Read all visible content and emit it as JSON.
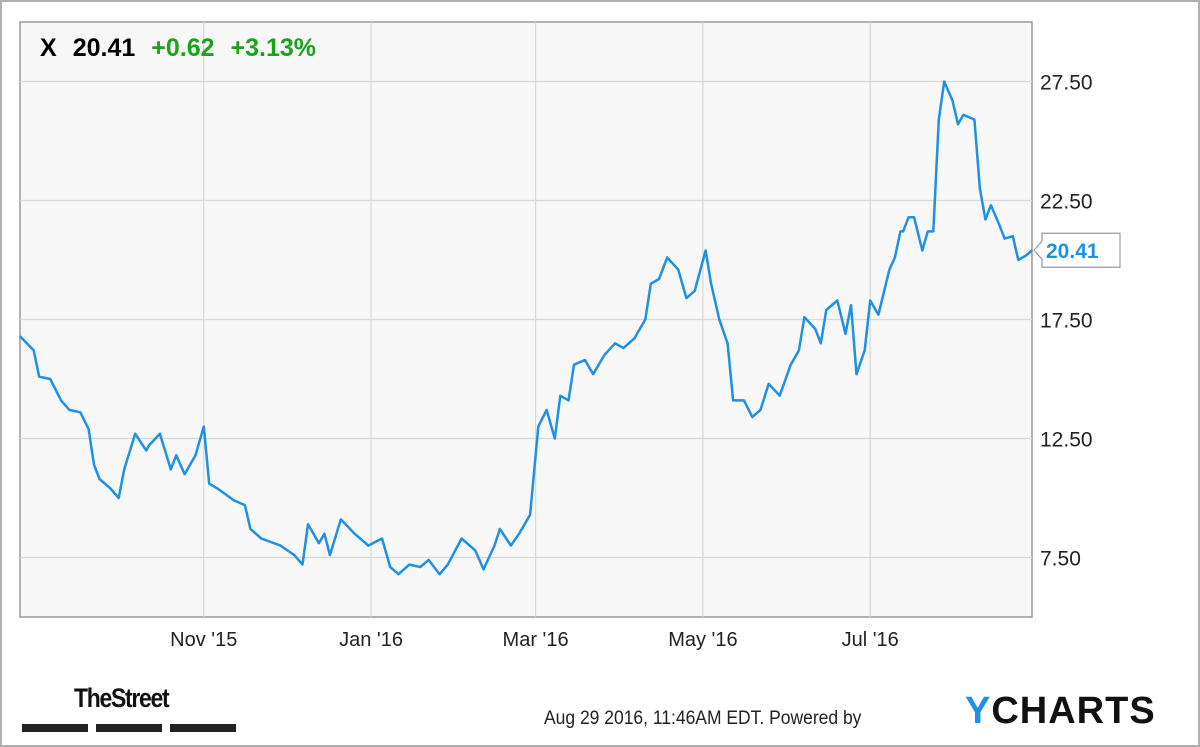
{
  "header": {
    "ticker": "X",
    "price": "20.41",
    "change": "+0.62",
    "change_pct": "+3.13%"
  },
  "footer": {
    "timestamp": "Aug 29 2016, 11:46AM EDT. Powered by",
    "brand": "YCHARTS",
    "brand_y": "Y",
    "brand_rest": "CHARTS",
    "publisher": "TheStreet"
  },
  "colors": {
    "line": "#1e90e6",
    "positive": "#1aa31a",
    "plot_bg": "#f7f7f7",
    "grid": "#d8d8d8"
  },
  "chart_data": {
    "type": "line",
    "title": "",
    "xlabel": "",
    "ylabel": "",
    "ylim": [
      5,
      30
    ],
    "xlim": [
      "2015-08-26",
      "2016-08-29"
    ],
    "grid": true,
    "y_axis_side": "right",
    "yticks": [
      "7.50",
      "12.50",
      "17.50",
      "22.50",
      "27.50"
    ],
    "xticks": [
      {
        "date": "2015-11-01",
        "label": "Nov '15"
      },
      {
        "date": "2016-01-01",
        "label": "Jan '16"
      },
      {
        "date": "2016-03-01",
        "label": "Mar '16"
      },
      {
        "date": "2016-05-01",
        "label": "May '16"
      },
      {
        "date": "2016-07-01",
        "label": "Jul '16"
      }
    ],
    "last_value_label": "20.41",
    "series": [
      {
        "x": [
          "2015-08-26",
          "2015-08-31",
          "2015-09-02",
          "2015-09-06",
          "2015-09-10",
          "2015-09-13",
          "2015-09-17",
          "2015-09-20",
          "2015-09-22",
          "2015-09-24",
          "2015-09-28",
          "2015-10-01",
          "2015-10-03",
          "2015-10-07",
          "2015-10-11",
          "2015-10-12",
          "2015-10-16",
          "2015-10-20",
          "2015-10-22",
          "2015-10-25",
          "2015-10-29",
          "2015-11-01",
          "2015-11-03",
          "2015-11-06",
          "2015-11-12",
          "2015-11-16",
          "2015-11-18",
          "2015-11-22",
          "2015-11-29",
          "2015-12-04",
          "2015-12-07",
          "2015-12-09",
          "2015-12-13",
          "2015-12-15",
          "2015-12-17",
          "2015-12-21",
          "2015-12-26",
          "2015-12-31",
          "2016-01-05",
          "2016-01-08",
          "2016-01-11",
          "2016-01-15",
          "2016-01-19",
          "2016-01-22",
          "2016-01-26",
          "2016-01-29",
          "2016-02-03",
          "2016-02-08",
          "2016-02-11",
          "2016-02-15",
          "2016-02-17",
          "2016-02-21",
          "2016-02-24",
          "2016-02-28",
          "2016-03-02",
          "2016-03-05",
          "2016-03-08",
          "2016-03-10",
          "2016-03-13",
          "2016-03-15",
          "2016-03-19",
          "2016-03-22",
          "2016-03-26",
          "2016-03-30",
          "2016-04-02",
          "2016-04-06",
          "2016-04-10",
          "2016-04-12",
          "2016-04-15",
          "2016-04-18",
          "2016-04-22",
          "2016-04-25",
          "2016-04-28",
          "2016-05-02",
          "2016-05-04",
          "2016-05-07",
          "2016-05-10",
          "2016-05-12",
          "2016-05-16",
          "2016-05-19",
          "2016-05-22",
          "2016-05-25",
          "2016-05-29",
          "2016-06-02",
          "2016-06-05",
          "2016-06-07",
          "2016-06-11",
          "2016-06-13",
          "2016-06-15",
          "2016-06-19",
          "2016-06-22",
          "2016-06-24",
          "2016-06-26",
          "2016-06-29",
          "2016-07-01",
          "2016-07-04",
          "2016-07-08",
          "2016-07-10",
          "2016-07-12",
          "2016-07-13",
          "2016-07-15",
          "2016-07-17",
          "2016-07-20",
          "2016-07-22",
          "2016-07-24",
          "2016-07-26",
          "2016-07-28",
          "2016-07-31",
          "2016-08-02",
          "2016-08-04",
          "2016-08-08",
          "2016-08-10",
          "2016-08-12",
          "2016-08-14",
          "2016-08-17",
          "2016-08-19",
          "2016-08-22",
          "2016-08-24",
          "2016-08-27",
          "2016-08-29"
        ],
        "y": [
          16.8,
          16.2,
          15.1,
          15.0,
          14.1,
          13.7,
          13.6,
          12.9,
          11.4,
          10.8,
          10.4,
          10.0,
          11.2,
          12.7,
          12.0,
          12.2,
          12.7,
          11.2,
          11.8,
          11.0,
          11.8,
          13.0,
          10.6,
          10.4,
          9.9,
          9.7,
          8.7,
          8.3,
          8.0,
          7.6,
          7.2,
          8.9,
          8.1,
          8.5,
          7.6,
          9.1,
          8.5,
          8.0,
          8.3,
          7.1,
          6.8,
          7.2,
          7.1,
          7.4,
          6.8,
          7.2,
          8.3,
          7.8,
          7.0,
          8.0,
          8.7,
          8.0,
          8.5,
          9.3,
          13.0,
          13.7,
          12.5,
          14.3,
          14.1,
          15.6,
          15.8,
          15.2,
          16.0,
          16.5,
          16.3,
          16.7,
          17.5,
          19.0,
          19.2,
          20.1,
          19.6,
          18.4,
          18.7,
          20.4,
          19.0,
          17.5,
          16.5,
          14.1,
          14.1,
          13.4,
          13.7,
          14.8,
          14.3,
          15.6,
          16.2,
          17.6,
          17.1,
          16.5,
          17.9,
          18.3,
          16.9,
          18.1,
          15.2,
          16.2,
          18.3,
          17.7,
          19.6,
          20.1,
          21.2,
          21.2,
          21.8,
          21.8,
          20.4,
          21.2,
          21.2,
          25.9,
          27.5,
          26.7,
          25.7,
          26.1,
          25.9,
          23.0,
          21.7,
          22.3,
          21.5,
          20.9,
          21.0,
          20.0,
          20.2,
          20.41
        ]
      }
    ]
  }
}
